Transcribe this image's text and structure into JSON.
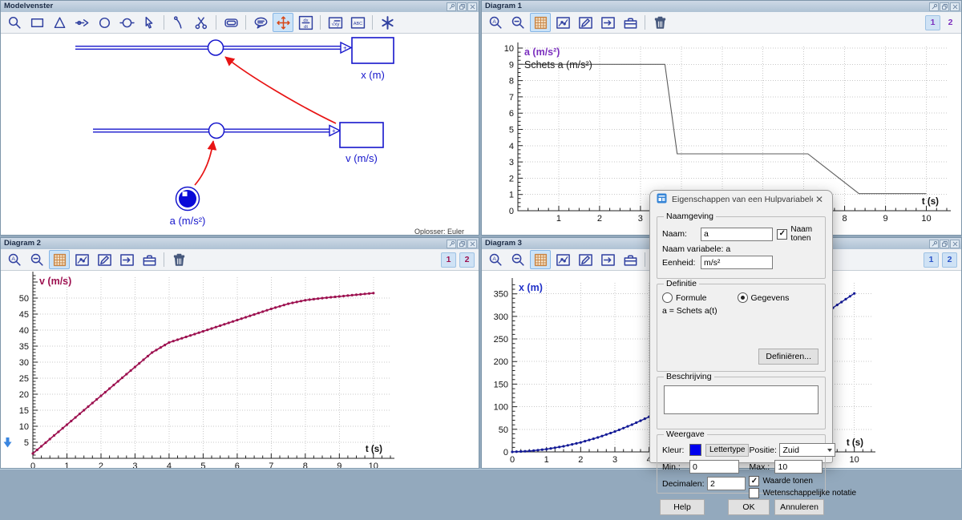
{
  "window_buttons": [
    {
      "name": "tool-icon"
    },
    {
      "name": "restore-icon"
    },
    {
      "name": "close-icon"
    }
  ],
  "panels": {
    "model": {
      "title": "Modelvenster",
      "solver": "Oplosser: Euler",
      "toolbar": [
        {
          "name": "zoom-icon"
        },
        {
          "name": "stock-rect-icon"
        },
        {
          "name": "triangle-icon"
        },
        {
          "name": "flow-arrow-icon"
        },
        {
          "name": "circle-icon"
        },
        {
          "name": "auxiliary-circle-icon"
        },
        {
          "name": "select-cursor-icon"
        },
        {
          "sep": true
        },
        {
          "name": "connector-icon"
        },
        {
          "name": "scissors-icon"
        },
        {
          "sep": true
        },
        {
          "name": "button-frame-icon"
        },
        {
          "sep": true
        },
        {
          "name": "comment-bubble-icon"
        },
        {
          "name": "move-cross-icon",
          "active": true
        },
        {
          "name": "dxdt-icon"
        },
        {
          "sep": true
        },
        {
          "name": "formula-icon"
        },
        {
          "name": "text-abc-icon"
        },
        {
          "sep": true
        },
        {
          "name": "asterisk-icon"
        }
      ],
      "labels": {
        "stock_x": "x (m)",
        "stock_v": "v (m/s)",
        "const_a": "a (m/s²)"
      },
      "colors": {
        "shape_blue": "#1616cc",
        "relation_red": "#e81414"
      }
    },
    "diagram1": {
      "title": "Diagram 1",
      "toolbar": [
        {
          "name": "zoom-fit-icon"
        },
        {
          "name": "zoom-out-icon"
        },
        {
          "name": "grid-icon",
          "active": true
        },
        {
          "name": "chart-icon"
        },
        {
          "name": "pencil-icon"
        },
        {
          "name": "export-icon"
        },
        {
          "name": "toolbox-icon"
        },
        {
          "sep": true
        },
        {
          "name": "trash-icon"
        }
      ],
      "run_color": "#7b2fbe",
      "runs": [
        {
          "label": "1",
          "active": true
        },
        {
          "label": "2",
          "active": false
        }
      ]
    },
    "diagram2": {
      "title": "Diagram 2",
      "toolbar": [
        {
          "name": "zoom-fit-icon"
        },
        {
          "name": "zoom-out-icon"
        },
        {
          "name": "grid-icon",
          "active": true
        },
        {
          "name": "chart-icon"
        },
        {
          "name": "pencil-icon"
        },
        {
          "name": "export-icon"
        },
        {
          "name": "toolbox-icon"
        },
        {
          "sep": true
        },
        {
          "name": "trash-icon"
        }
      ],
      "run_color": "#9d1150",
      "runs": [
        {
          "label": "1",
          "active": true
        },
        {
          "label": "2",
          "active": true
        }
      ]
    },
    "diagram3": {
      "title": "Diagram 3",
      "toolbar": [
        {
          "name": "zoom-fit-icon"
        },
        {
          "name": "zoom-out-icon"
        },
        {
          "name": "grid-icon",
          "active": true
        },
        {
          "name": "chart-icon"
        },
        {
          "name": "pencil-icon"
        },
        {
          "name": "export-icon"
        },
        {
          "name": "toolbox-icon"
        },
        {
          "sep": true
        },
        {
          "name": "trash-icon"
        }
      ],
      "run_color": "#2a52c8",
      "runs": [
        {
          "label": "1",
          "active": true
        },
        {
          "label": "2",
          "active": true
        }
      ]
    }
  },
  "chart_data": [
    {
      "id": "diagram1",
      "type": "line",
      "y_label": "a (m/s²)",
      "y_label_color": "#7b2fbe",
      "annotation": "Schets a (m/s²)",
      "annotation_color": "#1a1a1a",
      "x_label": "t (s)",
      "xlim": [
        0,
        10.5
      ],
      "ylim": [
        0,
        10.1
      ],
      "x_tick_step": 1,
      "x_minor_step": 0.25,
      "x_label_min": 1,
      "x_grid_max": 10,
      "y_tick_step": 1,
      "y_minor_step": 0.25,
      "y_label_min": 0,
      "y_grid_max": 10,
      "grid": true,
      "legend_position": "inside-top-left",
      "line_color": "#5c5c5c",
      "line_width": 1.1,
      "markers": false,
      "series": {
        "x": [
          0,
          3.6,
          3.9,
          7.1,
          8.35,
          10
        ],
        "y": [
          9,
          9,
          3.5,
          3.5,
          1.05,
          1.05
        ]
      }
    },
    {
      "id": "diagram2",
      "type": "line",
      "y_label": "v (m/s)",
      "y_label_color": "#9d1150",
      "annotation": "",
      "annotation_color": "#1a1a1a",
      "x_label": "t (s)",
      "xlim": [
        0,
        10.5
      ],
      "ylim": [
        0,
        57
      ],
      "x_tick_step": 1,
      "x_minor_step": 0.25,
      "x_label_min": 0,
      "x_grid_max": 10,
      "y_tick_step": 5,
      "y_minor_step": 1,
      "y_label_min": 5,
      "y_grid_max": 50,
      "grid": true,
      "legend_position": "inside-top-left",
      "line_color": "#9d1150",
      "line_width": 1.6,
      "markers": true,
      "marker_step": 0.125,
      "series": {
        "x": [
          0,
          0.5,
          1,
          1.5,
          2,
          2.5,
          3,
          3.5,
          4,
          4.5,
          5,
          5.5,
          6,
          6.5,
          7,
          7.5,
          8,
          8.5,
          9,
          9.5,
          10
        ],
        "y": [
          1.5,
          6,
          10.5,
          15,
          19.5,
          24,
          28.5,
          33,
          36.13,
          37.88,
          39.63,
          41.38,
          43.13,
          44.88,
          46.63,
          48.22,
          49.33,
          49.98,
          50.5,
          51.03,
          51.55
        ]
      }
    },
    {
      "id": "diagram3",
      "type": "line",
      "y_label": "x (m)",
      "y_label_color": "#2030c8",
      "annotation": "",
      "annotation_color": "#1a1a1a",
      "x_label": "t (s)",
      "xlim": [
        0,
        10.5
      ],
      "ylim": [
        0,
        376
      ],
      "x_tick_step": 1,
      "x_minor_step": 0.25,
      "x_label_min": 0,
      "x_grid_max": 10,
      "y_tick_step": 50,
      "y_minor_step": 10,
      "y_label_min": 0,
      "y_grid_max": 350,
      "grid": true,
      "legend_position": "inside-top-left",
      "line_color": "#131a96",
      "line_width": 1.4,
      "markers": true,
      "marker_step": 0.125,
      "series": {
        "x": [
          0,
          0.5,
          1,
          1.5,
          2,
          2.5,
          3,
          3.5,
          4,
          4.5,
          5,
          5.5,
          6,
          6.5,
          7,
          7.5,
          8,
          8.5,
          9,
          9.5,
          10
        ],
        "y": [
          0,
          1.88,
          6,
          12.38,
          21,
          31.88,
          45,
          60.38,
          77.66,
          96.16,
          115.53,
          135.78,
          156.91,
          178.91,
          201.78,
          225.49,
          249.88,
          274.71,
          299.83,
          325.21,
          350.86
        ]
      }
    }
  ],
  "dialog": {
    "title": "Eigenschappen van een Hulpvariabele",
    "close_label": "✕",
    "groups": {
      "naamgeving": {
        "legend": "Naamgeving",
        "naam_label": "Naam:",
        "naam_value": "a",
        "naam_tonen_label": "Naam tonen",
        "naam_tonen_checked": true,
        "naam_variabele_text": "Naam variabele: a",
        "eenheid_label": "Eenheid:",
        "eenheid_value": "m/s²"
      },
      "definitie": {
        "legend": "Definitie",
        "formule_label": "Formule",
        "gegevens_label": "Gegevens",
        "selected": "Gegevens",
        "formula_text": "a = Schets a(t)",
        "definieren_label": "Definiëren..."
      },
      "beschrijving": {
        "legend": "Beschrijving",
        "value": ""
      },
      "weergave": {
        "legend": "Weergave",
        "kleur_label": "Kleur:",
        "kleur_value": "#0000ee",
        "lettertype_label": "Lettertype",
        "positie_label": "Positie:",
        "positie_value": "Zuid",
        "min_label": "Min.:",
        "min_value": "0",
        "max_label": "Max.:",
        "max_value": "10",
        "decimalen_label": "Decimalen:",
        "decimalen_value": "2",
        "waarde_tonen_label": "Waarde tonen",
        "waarde_tonen_checked": true,
        "wetenschappelijke_label": "Wetenschappelijke notatie",
        "wetenschappelijke_checked": false
      }
    },
    "buttons": {
      "help": "Help",
      "ok": "OK",
      "annuleren": "Annuleren"
    }
  }
}
